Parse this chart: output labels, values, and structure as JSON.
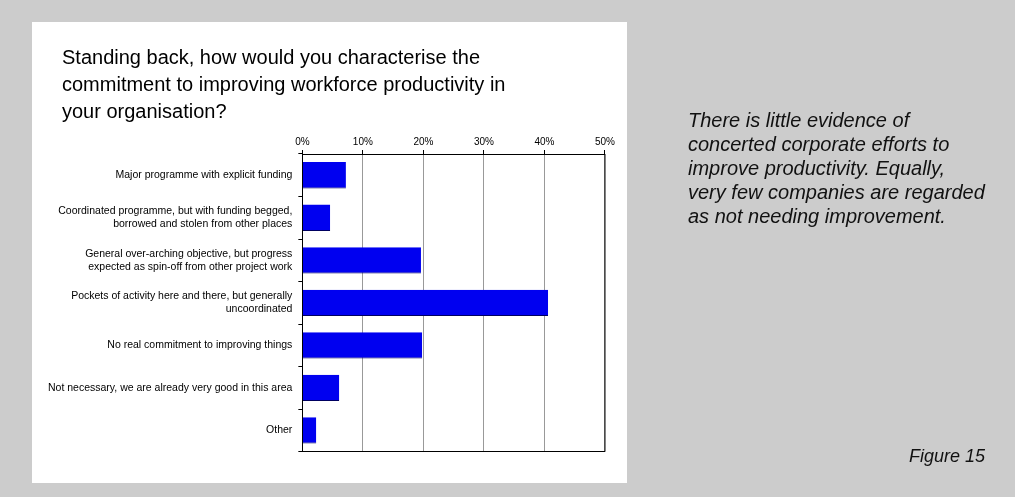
{
  "chart_data": {
    "type": "bar",
    "orientation": "horizontal",
    "title": "Standing back, how would you characterise the commitment to improving workforce productivity in your organisation?",
    "categories": [
      "Major programme with explicit funding",
      "Coordinated programme, but with funding begged, borrowed and stolen from other places",
      "General over-arching objective, but progress expected as spin-off from other project work",
      "Pockets of activity here and there, but generally uncoordinated",
      "No real commitment to improving things",
      "Not necessary, we are already very good in this area",
      "Other"
    ],
    "values": [
      7.2,
      4.6,
      19.6,
      40.6,
      19.8,
      6.1,
      2.3
    ],
    "color": "#0000f0",
    "xlim": [
      0,
      50
    ],
    "xticks": [
      {
        "value": 0,
        "label": "0%"
      },
      {
        "value": 10,
        "label": "10%"
      },
      {
        "value": 20,
        "label": "20%"
      },
      {
        "value": 30,
        "label": "30%"
      },
      {
        "value": 40,
        "label": "40%"
      },
      {
        "value": 50,
        "label": "50%"
      }
    ],
    "grid": "x",
    "legend": false,
    "annotations": [
      "There is little evidence of concerted corporate efforts to improve productivity. Equally, very few companies are regarded as not needing improvement.",
      "Figure 15"
    ]
  }
}
